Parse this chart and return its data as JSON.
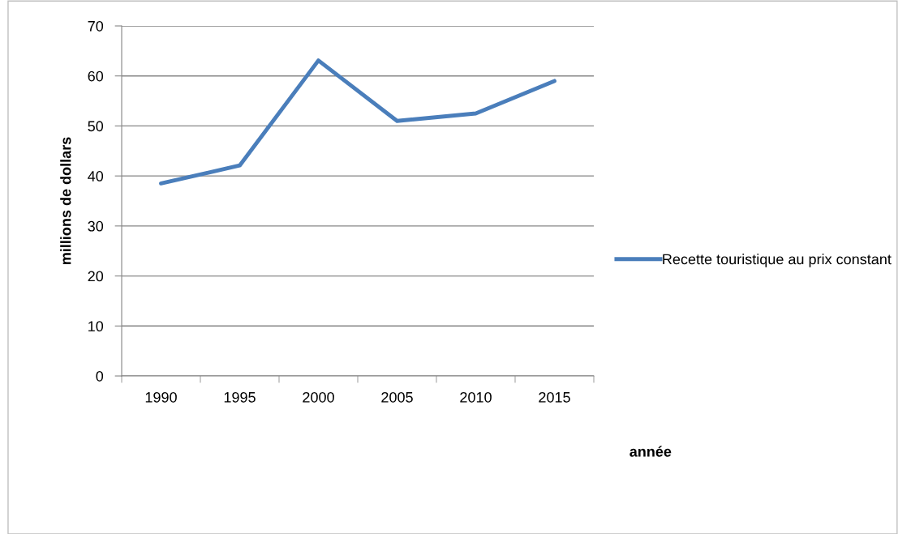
{
  "chart_data": {
    "type": "line",
    "xlabel": "année",
    "ylabel": "millions de dollars",
    "categories": [
      "1990",
      "1995",
      "2000",
      "2005",
      "2010",
      "2015"
    ],
    "series": [
      {
        "name": "Recette touristique au prix constant",
        "color": "#4a7ebb",
        "values": [
          38.5,
          42.1,
          63.1,
          51.0,
          52.5,
          59.0
        ]
      }
    ],
    "ylim": [
      0,
      70
    ],
    "yticks": [
      0,
      10,
      20,
      30,
      40,
      50,
      60,
      70
    ],
    "grid": "y",
    "legend": "right",
    "line_style": "solid",
    "marker": "none"
  }
}
